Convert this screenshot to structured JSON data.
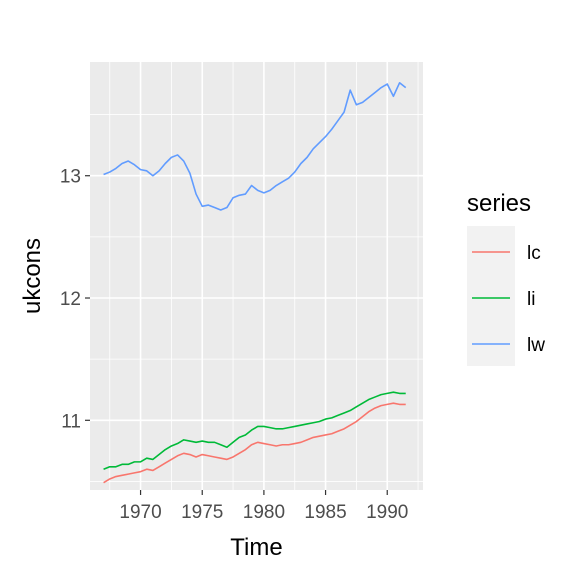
{
  "chart_data": {
    "type": "line",
    "xlabel": "Time",
    "ylabel": "ukcons",
    "xlim": [
      1965.9,
      1992.9
    ],
    "ylim": [
      10.43,
      13.93
    ],
    "xticks": [
      1970,
      1975,
      1980,
      1985,
      1990
    ],
    "yticks": [
      11,
      12,
      13
    ],
    "grid": true,
    "legend": {
      "title": "series",
      "position": "right"
    },
    "series": [
      {
        "name": "lc",
        "color": "#F8766D",
        "x": [
          1967.0,
          1967.5,
          1968.0,
          1968.5,
          1969.0,
          1969.5,
          1970.0,
          1970.5,
          1971.0,
          1971.5,
          1972.0,
          1972.5,
          1973.0,
          1973.5,
          1974.0,
          1974.5,
          1975.0,
          1975.5,
          1976.0,
          1976.5,
          1977.0,
          1977.5,
          1978.0,
          1978.5,
          1979.0,
          1979.5,
          1980.0,
          1980.5,
          1981.0,
          1981.5,
          1982.0,
          1982.5,
          1983.0,
          1983.5,
          1984.0,
          1984.5,
          1985.0,
          1985.5,
          1986.0,
          1986.5,
          1987.0,
          1987.5,
          1988.0,
          1988.5,
          1989.0,
          1989.5,
          1990.0,
          1990.5,
          1991.0,
          1991.5
        ],
        "values": [
          10.49,
          10.52,
          10.54,
          10.55,
          10.56,
          10.57,
          10.58,
          10.6,
          10.59,
          10.62,
          10.65,
          10.68,
          10.71,
          10.73,
          10.72,
          10.7,
          10.72,
          10.71,
          10.7,
          10.69,
          10.68,
          10.7,
          10.73,
          10.76,
          10.8,
          10.82,
          10.81,
          10.8,
          10.79,
          10.8,
          10.8,
          10.81,
          10.82,
          10.84,
          10.86,
          10.87,
          10.88,
          10.89,
          10.91,
          10.93,
          10.96,
          10.99,
          11.03,
          11.07,
          11.1,
          11.12,
          11.13,
          11.14,
          11.13,
          11.13
        ]
      },
      {
        "name": "li",
        "color": "#00BA38",
        "x": [
          1967.0,
          1967.5,
          1968.0,
          1968.5,
          1969.0,
          1969.5,
          1970.0,
          1970.5,
          1971.0,
          1971.5,
          1972.0,
          1972.5,
          1973.0,
          1973.5,
          1974.0,
          1974.5,
          1975.0,
          1975.5,
          1976.0,
          1976.5,
          1977.0,
          1977.5,
          1978.0,
          1978.5,
          1979.0,
          1979.5,
          1980.0,
          1980.5,
          1981.0,
          1981.5,
          1982.0,
          1982.5,
          1983.0,
          1983.5,
          1984.0,
          1984.5,
          1985.0,
          1985.5,
          1986.0,
          1986.5,
          1987.0,
          1987.5,
          1988.0,
          1988.5,
          1989.0,
          1989.5,
          1990.0,
          1990.5,
          1991.0,
          1991.5
        ],
        "values": [
          10.6,
          10.62,
          10.62,
          10.64,
          10.64,
          10.66,
          10.66,
          10.69,
          10.68,
          10.72,
          10.76,
          10.79,
          10.81,
          10.84,
          10.83,
          10.82,
          10.83,
          10.82,
          10.82,
          10.8,
          10.78,
          10.82,
          10.86,
          10.88,
          10.92,
          10.95,
          10.95,
          10.94,
          10.93,
          10.93,
          10.94,
          10.95,
          10.96,
          10.97,
          10.98,
          10.99,
          11.01,
          11.02,
          11.04,
          11.06,
          11.08,
          11.11,
          11.14,
          11.17,
          11.19,
          11.21,
          11.22,
          11.23,
          11.22,
          11.22
        ]
      },
      {
        "name": "lw",
        "color": "#619CFF",
        "x": [
          1967.0,
          1967.5,
          1968.0,
          1968.5,
          1969.0,
          1969.5,
          1970.0,
          1970.5,
          1971.0,
          1971.5,
          1972.0,
          1972.5,
          1973.0,
          1973.5,
          1974.0,
          1974.5,
          1975.0,
          1975.5,
          1976.0,
          1976.5,
          1977.0,
          1977.5,
          1978.0,
          1978.5,
          1979.0,
          1979.5,
          1980.0,
          1980.5,
          1981.0,
          1981.5,
          1982.0,
          1982.5,
          1983.0,
          1983.5,
          1984.0,
          1984.5,
          1985.0,
          1985.5,
          1986.0,
          1986.5,
          1987.0,
          1987.5,
          1988.0,
          1988.5,
          1989.0,
          1989.5,
          1990.0,
          1990.5,
          1991.0,
          1991.5
        ],
        "values": [
          13.01,
          13.03,
          13.06,
          13.1,
          13.12,
          13.09,
          13.05,
          13.04,
          13.0,
          13.04,
          13.1,
          13.15,
          13.17,
          13.12,
          13.02,
          12.85,
          12.75,
          12.76,
          12.74,
          12.72,
          12.74,
          12.82,
          12.84,
          12.85,
          12.92,
          12.88,
          12.86,
          12.88,
          12.92,
          12.95,
          12.98,
          13.03,
          13.1,
          13.15,
          13.22,
          13.27,
          13.32,
          13.38,
          13.45,
          13.52,
          13.7,
          13.58,
          13.6,
          13.64,
          13.68,
          13.72,
          13.75,
          13.65,
          13.76,
          13.72
        ]
      }
    ]
  }
}
